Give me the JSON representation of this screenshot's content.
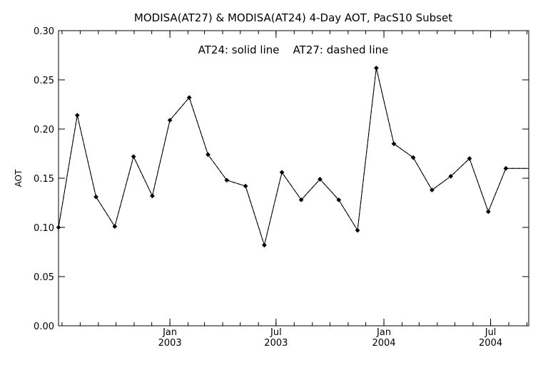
{
  "chart_data": {
    "type": "line",
    "title": "MODISA(AT27) & MODISA(AT24) 4-Day AOT, PacS10 Subset",
    "annotation": "AT24: solid line    AT27: dashed line",
    "xlabel": "",
    "ylabel": "AOT",
    "ylim": [
      0.0,
      0.3
    ],
    "yticks": [
      "0.00",
      "0.05",
      "0.10",
      "0.15",
      "0.20",
      "0.25",
      "0.30"
    ],
    "xlim": [
      "2002-06-25",
      "2004-09-04"
    ],
    "xticks": [
      {
        "date": "2003-01-01",
        "month": "Jan",
        "year": "2003"
      },
      {
        "date": "2003-07-01",
        "month": "Jul",
        "year": "2003"
      },
      {
        "date": "2004-01-01",
        "month": "Jan",
        "year": "2004"
      },
      {
        "date": "2004-07-01",
        "month": "Jul",
        "year": "2004"
      }
    ],
    "minor_ticks": [
      "2002-07-01",
      "2002-08-01",
      "2002-09-01",
      "2002-10-01",
      "2002-11-01",
      "2002-12-01",
      "2003-01-01",
      "2003-02-01",
      "2003-03-01",
      "2003-04-01",
      "2003-05-01",
      "2003-06-01",
      "2003-07-01",
      "2003-08-01",
      "2003-09-01",
      "2003-10-01",
      "2003-11-01",
      "2003-12-01",
      "2004-01-01",
      "2004-02-01",
      "2004-03-01",
      "2004-04-01",
      "2004-05-01",
      "2004-06-01",
      "2004-07-01",
      "2004-08-01",
      "2004-09-01"
    ],
    "grid": false,
    "line_color": "#000000",
    "series": [
      {
        "line_style": "solid",
        "x": [
          "2002-06-25",
          "2002-07-27",
          "2002-08-28",
          "2002-09-29",
          "2002-10-31",
          "2002-12-02",
          "2003-01-01",
          "2003-02-03",
          "2003-03-07",
          "2003-04-08",
          "2003-05-10",
          "2003-06-11",
          "2003-07-11",
          "2003-08-13",
          "2003-09-14",
          "2003-10-16",
          "2003-11-17",
          "2003-12-19",
          "2004-01-18",
          "2004-02-20",
          "2004-03-23",
          "2004-04-24",
          "2004-05-26",
          "2004-06-27",
          "2004-07-27",
          "2004-09-04"
        ],
        "y": [
          0.1,
          0.214,
          0.131,
          0.101,
          0.172,
          0.132,
          0.209,
          0.232,
          0.174,
          0.148,
          0.142,
          0.082,
          0.156,
          0.128,
          0.149,
          0.128,
          0.097,
          0.262,
          0.185,
          0.171,
          0.138,
          0.152,
          0.17,
          0.116,
          0.16,
          0.16
        ]
      },
      {
        "line_style": "dashed",
        "x": [
          "2002-06-25",
          "2002-07-27",
          "2002-08-28",
          "2002-09-29",
          "2002-10-31",
          "2002-12-02",
          "2003-01-01",
          "2003-02-03",
          "2003-03-07",
          "2003-04-08",
          "2003-05-10",
          "2003-06-11",
          "2003-07-11",
          "2003-08-13",
          "2003-09-14",
          "2003-10-16",
          "2003-11-17",
          "2003-12-19",
          "2004-01-18",
          "2004-02-20",
          "2004-03-23",
          "2004-04-24",
          "2004-05-26",
          "2004-06-27",
          "2004-07-27",
          "2004-09-04"
        ],
        "y": [
          0.1,
          0.214,
          0.131,
          0.101,
          0.172,
          0.132,
          0.209,
          0.232,
          0.174,
          0.148,
          0.142,
          0.082,
          0.156,
          0.128,
          0.149,
          0.128,
          0.097,
          0.262,
          0.185,
          0.171,
          0.138,
          0.152,
          0.17,
          0.116,
          0.16,
          0.16
        ]
      }
    ]
  }
}
